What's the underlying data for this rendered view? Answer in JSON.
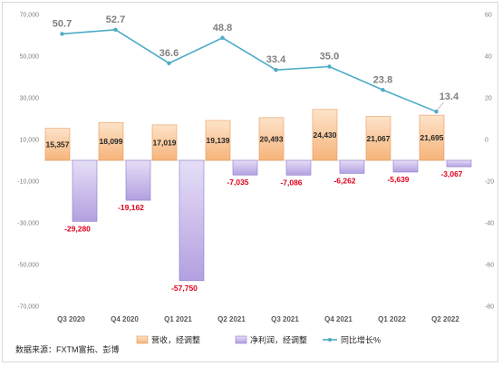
{
  "chart_data": {
    "type": "bar+line",
    "categories": [
      "Q3 2020",
      "Q4 2020",
      "Q1 2021",
      "Q2 2021",
      "Q3 2021",
      "Q4 2021",
      "Q1 2022",
      "Q2 2022"
    ],
    "series": [
      {
        "name": "营收，经调整",
        "kind": "bar",
        "axis": "left",
        "color": "#f8c79a",
        "values": [
          15357,
          18099,
          17019,
          19139,
          20493,
          24430,
          21067,
          21695
        ],
        "labels": [
          "15,357",
          "18,099",
          "17,019",
          "19,139",
          "20,493",
          "24,430",
          "21,067",
          "21,695"
        ]
      },
      {
        "name": "净利润，经调整",
        "kind": "bar",
        "axis": "left",
        "color": "#c4b5e8",
        "values": [
          -29280,
          -19162,
          -57750,
          -7035,
          -7086,
          -6262,
          -5639,
          -3067
        ],
        "labels": [
          "-29,280",
          "-19,162",
          "-57,750",
          "-7,035",
          "-7,086",
          "-6,262",
          "-5,639",
          "-3,067"
        ]
      },
      {
        "name": "同比增长%",
        "kind": "line",
        "axis": "right",
        "color": "#4bacc6",
        "values": [
          50.7,
          52.7,
          36.6,
          48.8,
          33.4,
          35.0,
          23.8,
          13.4
        ],
        "labels": [
          "50.7",
          "52.7",
          "36.6",
          "48.8",
          "33.4",
          "35.0",
          "23.8",
          "13.4"
        ]
      }
    ],
    "left_axis": {
      "ylim": [
        -70000,
        70000
      ],
      "ticks": [
        "70,000",
        "50,000",
        "30,000",
        "10,000",
        "-10,000",
        "-30,000",
        "-50,000",
        "-70,000"
      ]
    },
    "right_axis": {
      "ylim": [
        -80,
        60
      ],
      "ticks": [
        "60",
        "40",
        "20",
        "0",
        "-20",
        "-40",
        "-60",
        "-80"
      ]
    },
    "legend_position": "bottom",
    "grid": false
  },
  "source": "数据来源：FXTM富拓、彭博"
}
